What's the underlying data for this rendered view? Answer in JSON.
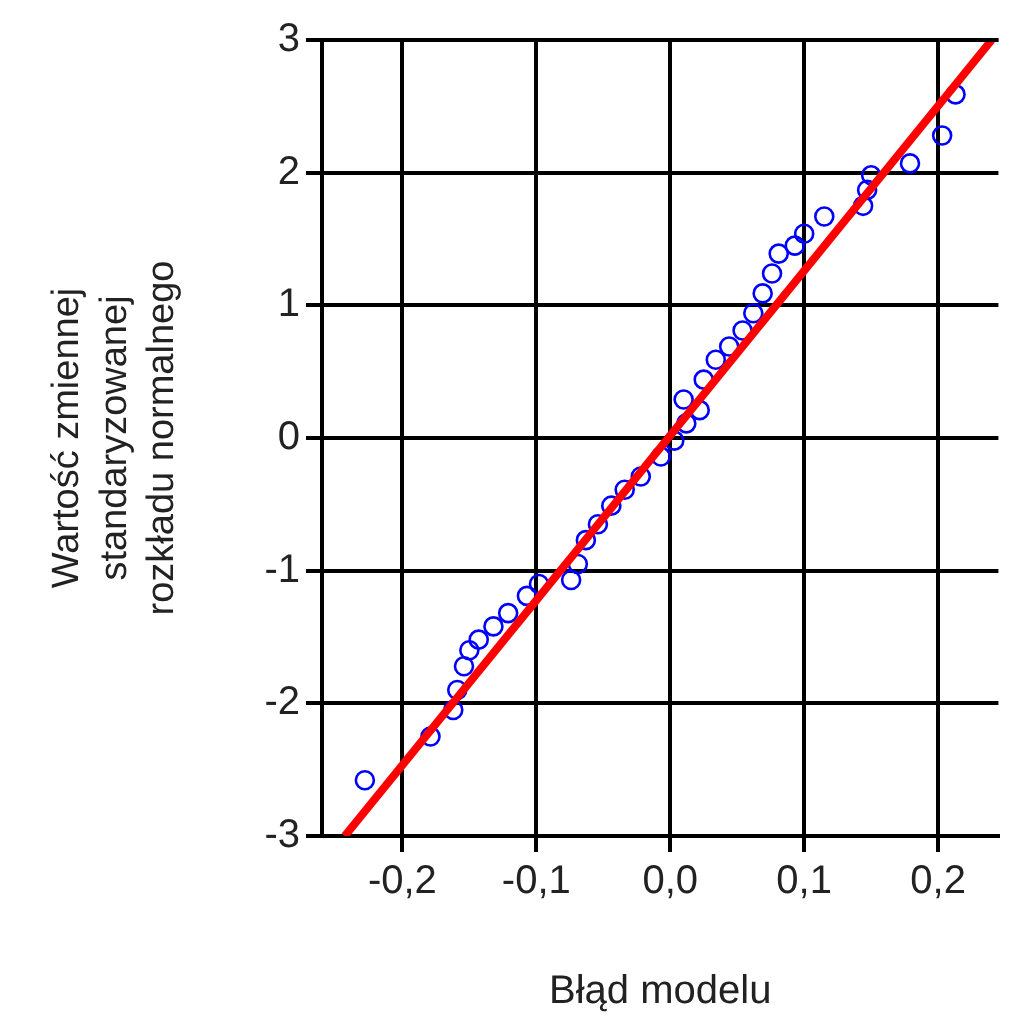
{
  "chart_data": {
    "type": "scatter",
    "xlabel": "Błąd modelu",
    "ylabel": "Wartość zmiennej\nstandaryzowanej\nrozkładu normalnego",
    "xlim": [
      -0.26,
      0.245
    ],
    "ylim": [
      -3,
      3
    ],
    "xticks": [
      {
        "value": -0.2,
        "label": "-0,2"
      },
      {
        "value": -0.1,
        "label": "-0,1"
      },
      {
        "value": 0,
        "label": "0,0"
      },
      {
        "value": 0.1,
        "label": "0,1"
      },
      {
        "value": 0.2,
        "label": "0,2"
      }
    ],
    "yticks": [
      -3,
      -2,
      -1,
      0,
      1,
      2,
      3
    ],
    "grid": true,
    "legend": false,
    "series": [
      {
        "type": "scatter",
        "color": "#0000ff",
        "marker": "circle",
        "x": [
          -0.228,
          -0.179,
          -0.162,
          -0.159,
          -0.154,
          -0.15,
          -0.143,
          -0.132,
          -0.121,
          -0.107,
          -0.098,
          -0.074,
          -0.069,
          -0.063,
          -0.054,
          -0.044,
          -0.034,
          -0.022,
          -0.007,
          0.003,
          0.012,
          0.022,
          0.01,
          0.025,
          0.034,
          0.044,
          0.054,
          0.062,
          0.069,
          0.076,
          0.081,
          0.093,
          0.1,
          0.115,
          0.144,
          0.147,
          0.15,
          0.179,
          0.203,
          0.213
        ],
        "values": [
          -2.58,
          -2.25,
          -2.05,
          -1.9,
          -1.72,
          -1.6,
          -1.52,
          -1.42,
          -1.32,
          -1.19,
          -1.1,
          -1.07,
          -0.95,
          -0.77,
          -0.65,
          -0.51,
          -0.39,
          -0.29,
          -0.14,
          -0.02,
          0.11,
          0.21,
          0.29,
          0.44,
          0.59,
          0.69,
          0.81,
          0.94,
          1.09,
          1.24,
          1.39,
          1.45,
          1.54,
          1.67,
          1.75,
          1.87,
          1.98,
          2.07,
          2.28,
          2.59
        ]
      },
      {
        "type": "line",
        "color": "#ff0000",
        "marker": "none",
        "line_style": "solid",
        "x": [
          -0.243,
          0.24
        ],
        "values": [
          -3,
          3
        ]
      }
    ]
  }
}
